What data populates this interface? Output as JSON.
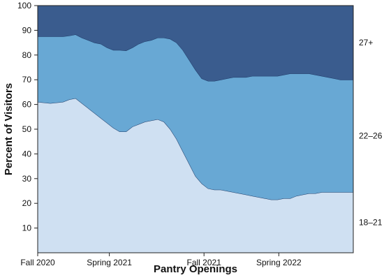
{
  "chart_data": {
    "type": "area",
    "stacked": true,
    "xlabel": "Pantry Openings",
    "ylabel": "Percent of Visitors",
    "ylim": [
      0,
      100
    ],
    "yticks": [
      10,
      20,
      30,
      40,
      50,
      60,
      70,
      80,
      90,
      100
    ],
    "xlim": [
      0,
      100
    ],
    "x_tick_labels": [
      {
        "x": 0,
        "label": "Fall 2020"
      },
      {
        "x": 22.7,
        "label": "Spring 2021"
      },
      {
        "x": 52.7,
        "label": "Fall 2021"
      },
      {
        "x": 76.4,
        "label": "Spring 2022"
      }
    ],
    "x": [
      0,
      4,
      8,
      10,
      12,
      14,
      16,
      18,
      20,
      22,
      24,
      26,
      28,
      30,
      32,
      34,
      36,
      38,
      40,
      42,
      44,
      46,
      48,
      50,
      52,
      54,
      56,
      58,
      60,
      62,
      64,
      66,
      68,
      70,
      72,
      74,
      76,
      78,
      80,
      82,
      84,
      86,
      88,
      90,
      92,
      94,
      96,
      98,
      100
    ],
    "series": [
      {
        "name": "18–21",
        "color": "#cfe0f2",
        "values": [
          61,
          60.5,
          61,
          62,
          62.5,
          60.5,
          58.5,
          56.5,
          54.5,
          52.5,
          50.5,
          49,
          49,
          51,
          52,
          53,
          53.5,
          54,
          53,
          50,
          46,
          41,
          36,
          31,
          28,
          26,
          25.5,
          25.5,
          25,
          24.5,
          24,
          23.5,
          23,
          22.5,
          22,
          21.5,
          21.5,
          22,
          22,
          23,
          23.5,
          24,
          24,
          24.5,
          24.5,
          24.5,
          24.5,
          24.5,
          24.5
        ]
      },
      {
        "name": "22–26",
        "color": "#68a8d4",
        "values": [
          26.5,
          27,
          26.5,
          25.8,
          25.8,
          26.5,
          27.5,
          28.5,
          30,
          30.5,
          31.5,
          33,
          32.8,
          32,
          32.5,
          32.5,
          32.5,
          33,
          34,
          36.5,
          39,
          41,
          42,
          43,
          42.5,
          43.5,
          44,
          44.5,
          45.5,
          46.5,
          47,
          47.5,
          48.5,
          49,
          49.5,
          50,
          50,
          50,
          50.5,
          49.5,
          49,
          48.5,
          48,
          47,
          46.5,
          46,
          45.5,
          45.5,
          45.5
        ]
      },
      {
        "name": "27+",
        "color": "#3a5c8e",
        "values": [
          12.5,
          12.5,
          12.5,
          12.2,
          11.7,
          13,
          14,
          15,
          15.5,
          17,
          18,
          18,
          18.2,
          17,
          15.5,
          14.5,
          14,
          13,
          13,
          13.5,
          15,
          18,
          22,
          26,
          29.5,
          30.5,
          30.5,
          30,
          29.5,
          29,
          29,
          29,
          28.5,
          28.5,
          28.5,
          28.5,
          28.5,
          28,
          27.5,
          27.5,
          27.5,
          27.5,
          28,
          28.5,
          29,
          29.5,
          30,
          30,
          30
        ]
      }
    ]
  }
}
